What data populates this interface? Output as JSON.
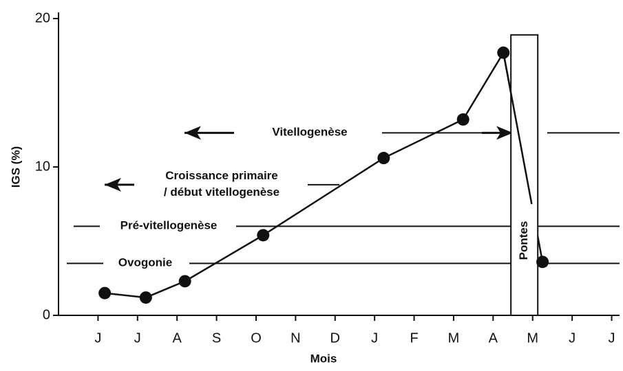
{
  "chart_data": {
    "type": "line",
    "ylabel": "IGS (%)",
    "xlabel": "Mois",
    "xlim": [
      -1,
      13.2
    ],
    "xticks": [
      {
        "value": 0,
        "label": "J"
      },
      {
        "value": 1,
        "label": "J"
      },
      {
        "value": 2,
        "label": "A"
      },
      {
        "value": 3,
        "label": "S"
      },
      {
        "value": 4,
        "label": "O"
      },
      {
        "value": 5,
        "label": "N"
      },
      {
        "value": 6,
        "label": "D"
      },
      {
        "value": 7,
        "label": "J"
      },
      {
        "value": 8,
        "label": "F"
      },
      {
        "value": 9,
        "label": "M"
      },
      {
        "value": 10,
        "label": "A"
      },
      {
        "value": 11,
        "label": "M"
      },
      {
        "value": 12,
        "label": "J"
      },
      {
        "value": 13,
        "label": "J"
      }
    ],
    "ylim": [
      0,
      20
    ],
    "yticks": [
      0,
      10,
      20
    ],
    "series": [
      {
        "color": "#111111",
        "x": [
          0.17,
          1.21,
          2.2,
          4.18,
          7.23,
          9.24,
          10.26,
          11.25
        ],
        "values": [
          1.5,
          1.2,
          2.3,
          5.4,
          10.6,
          13.2,
          17.7,
          3.6
        ]
      }
    ],
    "phases": [
      {
        "label": "Vitellogenèse",
        "y": 12.3
      },
      {
        "label": "Croissance primaire\n/ début vitellogenèse",
        "y": 8.8
      },
      {
        "label": "Pré-vitellogenèse",
        "y": 6.0
      },
      {
        "label": "Ovogonie",
        "y": 3.5
      }
    ],
    "spawning": {
      "label": "Pontes",
      "x": [
        10.45,
        11.13
      ],
      "y_top": 18.9
    }
  }
}
